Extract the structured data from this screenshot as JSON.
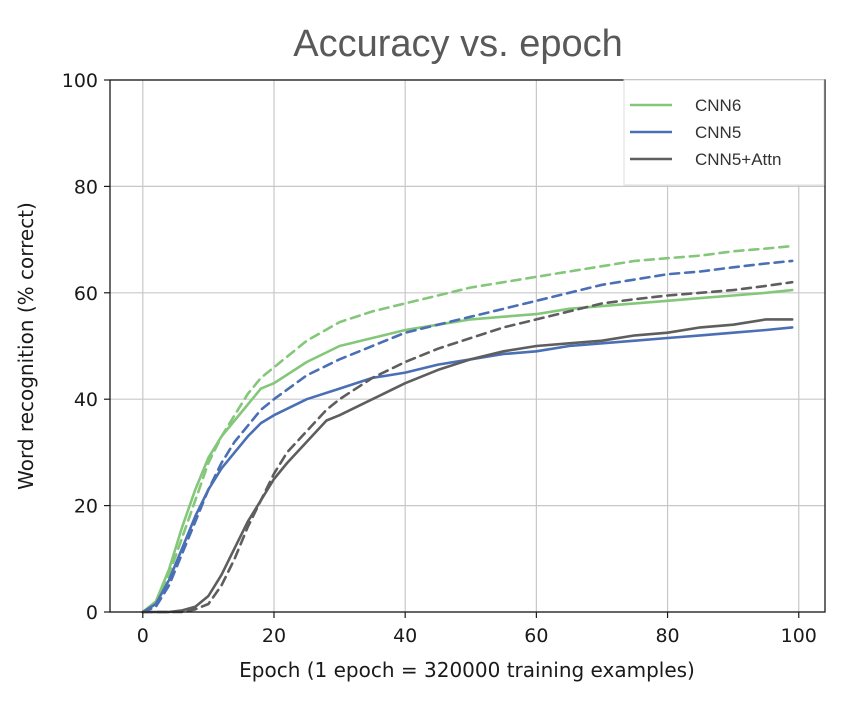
{
  "chart_data": {
    "type": "line",
    "title": "Accuracy vs. epoch",
    "xlabel": "Epoch (1 epoch = 320000 training examples)",
    "ylabel": "Word recognition (% correct)",
    "xlim": [
      -5,
      104
    ],
    "ylim": [
      0,
      100
    ],
    "xticks": [
      0,
      20,
      40,
      60,
      80,
      100
    ],
    "yticks": [
      0,
      20,
      40,
      60,
      80,
      100
    ],
    "grid": true,
    "legend_position": "top-right",
    "legend": [
      {
        "label": "CNN6",
        "color": "#84c77a"
      },
      {
        "label": "CNN5",
        "color": "#4a6fb5"
      },
      {
        "label": "CNN5+Attn",
        "color": "#5e5e5e"
      }
    ],
    "series": [
      {
        "name": "CNN6",
        "style": "solid",
        "color": "#84c77a",
        "x": [
          0,
          2,
          4,
          6,
          8,
          10,
          12,
          14,
          16,
          18,
          20,
          25,
          30,
          35,
          40,
          45,
          50,
          55,
          60,
          65,
          70,
          75,
          80,
          85,
          90,
          95,
          99
        ],
        "y": [
          0,
          2,
          8,
          16,
          23,
          29,
          33,
          36,
          39,
          42,
          43,
          47,
          50,
          51.5,
          53,
          54,
          55,
          55.5,
          56,
          57,
          57.5,
          58,
          58.5,
          59,
          59.5,
          60,
          60.5
        ]
      },
      {
        "style": "dashed",
        "color": "#84c77a",
        "x": [
          0,
          2,
          4,
          6,
          8,
          10,
          12,
          14,
          16,
          18,
          20,
          25,
          30,
          35,
          40,
          45,
          50,
          55,
          60,
          65,
          70,
          75,
          80,
          85,
          90,
          95,
          99
        ],
        "y": [
          0,
          1.5,
          7,
          14,
          21,
          28,
          33,
          37,
          41,
          44,
          46,
          51,
          54.5,
          56.5,
          58,
          59.5,
          61,
          62,
          63,
          64,
          65,
          66,
          66.5,
          67,
          67.8,
          68.3,
          68.8
        ]
      },
      {
        "name": "CNN5",
        "style": "solid",
        "color": "#4a6fb5",
        "x": [
          0,
          2,
          4,
          6,
          8,
          10,
          12,
          14,
          16,
          18,
          20,
          25,
          30,
          35,
          40,
          45,
          50,
          55,
          60,
          65,
          70,
          75,
          80,
          85,
          90,
          95,
          99
        ],
        "y": [
          0,
          1.5,
          6,
          12,
          18,
          23,
          27,
          30,
          33,
          35.5,
          37,
          40,
          42,
          44,
          45,
          46.5,
          47.5,
          48.5,
          49,
          50,
          50.5,
          51,
          51.5,
          52,
          52.5,
          53,
          53.5
        ]
      },
      {
        "style": "dashed",
        "color": "#4a6fb5",
        "x": [
          0,
          2,
          4,
          6,
          8,
          10,
          12,
          14,
          16,
          18,
          20,
          25,
          30,
          35,
          40,
          45,
          50,
          55,
          60,
          65,
          70,
          75,
          80,
          85,
          90,
          95,
          99
        ],
        "y": [
          0,
          1,
          5,
          11,
          17,
          23,
          28,
          32,
          35,
          38,
          40,
          44.5,
          47.5,
          50,
          52.5,
          54,
          55.5,
          57,
          58.5,
          60,
          61.5,
          62.5,
          63.5,
          64,
          64.8,
          65.5,
          66
        ]
      },
      {
        "name": "CNN5+Attn",
        "style": "solid",
        "color": "#5e5e5e",
        "x": [
          0,
          4,
          6,
          8,
          10,
          12,
          14,
          16,
          18,
          20,
          22,
          25,
          28,
          30,
          35,
          40,
          45,
          50,
          55,
          60,
          65,
          70,
          75,
          80,
          85,
          90,
          95,
          99
        ],
        "y": [
          0,
          0,
          0.3,
          1,
          3,
          7,
          12,
          17,
          21,
          25,
          28,
          32,
          36,
          37,
          40,
          43,
          45.5,
          47.5,
          49,
          50,
          50.5,
          51,
          52,
          52.5,
          53.5,
          54,
          55,
          55
        ]
      },
      {
        "style": "dashed",
        "color": "#5e5e5e",
        "x": [
          0,
          6,
          8,
          10,
          12,
          14,
          16,
          18,
          20,
          22,
          25,
          28,
          30,
          35,
          40,
          45,
          50,
          55,
          60,
          65,
          70,
          75,
          80,
          85,
          90,
          95,
          99
        ],
        "y": [
          0,
          0,
          0.5,
          1.5,
          5,
          10,
          16,
          21,
          26,
          30,
          34,
          38,
          40,
          44,
          47,
          49.5,
          51.5,
          53.5,
          55,
          56.5,
          58,
          58.8,
          59.5,
          60,
          60.5,
          61.3,
          62
        ]
      }
    ]
  }
}
